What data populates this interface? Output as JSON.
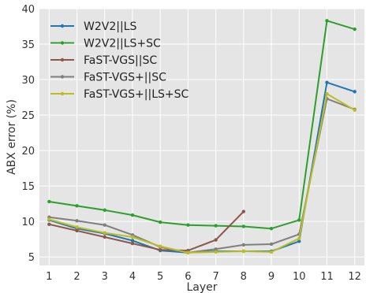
{
  "chart_data": {
    "type": "line",
    "title": "",
    "xlabel": "Layer",
    "ylabel": "ABX error (%)",
    "x": [
      1,
      2,
      3,
      4,
      5,
      6,
      7,
      8,
      9,
      10,
      11,
      12
    ],
    "xlim": [
      0.65,
      12.35
    ],
    "ylim": [
      3.8,
      40
    ],
    "yticks": [
      5,
      10,
      15,
      20,
      25,
      30,
      35,
      40
    ],
    "grid": true,
    "legend_position": "top-left",
    "series": [
      {
        "name": "W2V2||LS",
        "color": "#1f77b4",
        "x": [
          1,
          2,
          3,
          4,
          5,
          6,
          7,
          8,
          9,
          10,
          11,
          12
        ],
        "values": [
          10.2,
          9.0,
          8.3,
          7.3,
          5.9,
          5.6,
          5.8,
          5.8,
          5.8,
          7.2,
          29.6,
          28.3
        ]
      },
      {
        "name": "W2V2||LS+SC",
        "color": "#2ca02c",
        "x": [
          1,
          2,
          3,
          4,
          5,
          6,
          7,
          8,
          9,
          10,
          11,
          12
        ],
        "values": [
          12.8,
          12.2,
          11.6,
          10.9,
          9.9,
          9.5,
          9.4,
          9.3,
          9.0,
          10.2,
          38.3,
          37.1
        ]
      },
      {
        "name": "FaST-VGS||SC",
        "color": "#8c564b",
        "x": [
          1,
          2,
          3,
          4,
          5,
          6,
          7,
          8
        ],
        "values": [
          9.6,
          8.7,
          7.8,
          6.9,
          6.0,
          5.9,
          7.4,
          11.4
        ]
      },
      {
        "name": "FaST-VGS+||SC",
        "color": "#7f7f7f",
        "x": [
          1,
          2,
          3,
          4,
          5,
          6,
          7,
          8,
          9,
          10,
          11,
          12
        ],
        "values": [
          10.6,
          10.1,
          9.5,
          8.1,
          6.4,
          5.6,
          6.1,
          6.7,
          6.8,
          8.2,
          27.3,
          25.8
        ]
      },
      {
        "name": "FaST-VGS+||LS+SC",
        "color": "#bcbd22",
        "x": [
          1,
          2,
          3,
          4,
          5,
          6,
          7,
          8,
          9,
          10,
          11,
          12
        ],
        "values": [
          10.3,
          9.2,
          8.4,
          7.8,
          6.5,
          5.6,
          5.7,
          5.8,
          5.7,
          7.6,
          28.0,
          25.7
        ]
      }
    ]
  }
}
